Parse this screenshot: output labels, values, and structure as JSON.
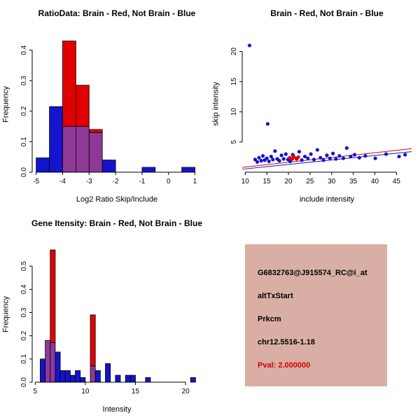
{
  "window": {
    "background": "#ffffff"
  },
  "colors": {
    "brain_red": "#e10000",
    "not_brain_blue": "#1414cc",
    "overlap_purple": "#8f3996",
    "axis_black": "#000000"
  },
  "panels": {
    "info_box": {
      "background": "#d9aea4",
      "lines": [
        {
          "text": "G6832763@J915574_RC@i_at",
          "color": "#000000"
        },
        {
          "text": "altTxStart",
          "color": "#000000"
        },
        {
          "text": "Prkcm",
          "color": "#000000"
        },
        {
          "text": "chr12.5516-1.18",
          "color": "#000000"
        },
        {
          "text": "Pval: 2.000000",
          "color": "#d40000"
        }
      ]
    }
  },
  "chart_data": [
    {
      "id": "ratio_hist",
      "type": "histogram",
      "title": "RatioData: Brain - Red, Not Brain - Blue",
      "xlabel": "Log2 Ratio Skip/Include",
      "ylabel": "Frequency",
      "xlim": [
        -5.15,
        1.25
      ],
      "ylim": [
        0,
        0.445
      ],
      "x_ticks": [
        -5,
        -4,
        -3,
        -2,
        -1,
        0,
        1
      ],
      "x_tick_labels": [
        "-5",
        "-4",
        "-3",
        "-2",
        "-1",
        "0",
        "1"
      ],
      "y_ticks": [
        0,
        0.1,
        0.2,
        0.3,
        0.4
      ],
      "y_tick_labels": [
        "0.0",
        "0.1",
        "0.2",
        "0.3",
        "0.4"
      ],
      "bin_width": 0.5,
      "colors": {
        "blue": "#1414cc",
        "red": "#e10000",
        "overlap": "#8f3996"
      },
      "blue_bins": [
        [
          -5,
          0.047
        ],
        [
          -4.5,
          0.215
        ],
        [
          -4,
          0.15
        ],
        [
          -3.5,
          0.15
        ],
        [
          -3,
          0.13
        ],
        [
          -2.5,
          0.04
        ],
        [
          -1,
          0.016
        ],
        [
          0.5,
          0.016
        ]
      ],
      "red_bins": [
        [
          -4,
          0.43
        ],
        [
          -3.5,
          0.285
        ],
        [
          -3,
          0.14
        ]
      ],
      "legend_note": "Brain - Red, Not Brain - Blue"
    },
    {
      "id": "scatter",
      "type": "scatter",
      "title": "Brain - Red, Not Brain - Blue",
      "xlabel": "include intensity",
      "ylabel": "skip intensity",
      "xlim": [
        9.3,
        48.5
      ],
      "ylim": [
        0,
        22.5
      ],
      "x_ticks": [
        10,
        15,
        20,
        25,
        30,
        35,
        40,
        45
      ],
      "x_tick_labels": [
        "10",
        "15",
        "20",
        "25",
        "30",
        "35",
        "40",
        "45"
      ],
      "y_ticks": [
        5,
        10,
        15,
        20
      ],
      "y_tick_labels": [
        "5",
        "10",
        "15",
        "20"
      ],
      "series": [
        {
          "name": "Not Brain",
          "color": "#1414cc",
          "points": [
            [
              11,
              21
            ],
            [
              15.2,
              8
            ],
            [
              12.3,
              2.1
            ],
            [
              12.8,
              1.7
            ],
            [
              13.2,
              2.4
            ],
            [
              13.7,
              1.9
            ],
            [
              14.1,
              2.7
            ],
            [
              14.5,
              2.0
            ],
            [
              15.0,
              2.3
            ],
            [
              15.5,
              1.8
            ],
            [
              16.0,
              2.6
            ],
            [
              16.4,
              2.1
            ],
            [
              16.9,
              3.5
            ],
            [
              17.4,
              2.2
            ],
            [
              17.9,
              1.9
            ],
            [
              18.4,
              2.8
            ],
            [
              18.9,
              2.2
            ],
            [
              19.4,
              3.0
            ],
            [
              19.9,
              2.1
            ],
            [
              20.4,
              1.8
            ],
            [
              21.0,
              2.9
            ],
            [
              21.9,
              2.2
            ],
            [
              22.5,
              3.4
            ],
            [
              23.1,
              2.0
            ],
            [
              23.8,
              2.6
            ],
            [
              24.5,
              2.3
            ],
            [
              25.2,
              3.0
            ],
            [
              25.9,
              2.1
            ],
            [
              26.7,
              3.7
            ],
            [
              27.4,
              2.4
            ],
            [
              28.1,
              2.0
            ],
            [
              28.9,
              2.8
            ],
            [
              29.6,
              2.3
            ],
            [
              30.3,
              3.1
            ],
            [
              31.0,
              2.2
            ],
            [
              31.8,
              2.7
            ],
            [
              32.7,
              2.3
            ],
            [
              33.5,
              4.0
            ],
            [
              34.4,
              2.6
            ],
            [
              35.3,
              2.9
            ],
            [
              36.4,
              2.4
            ],
            [
              37.8,
              2.7
            ],
            [
              40.1,
              2.3
            ],
            [
              42.6,
              3.0
            ],
            [
              45.6,
              2.6
            ],
            [
              47.0,
              2.9
            ]
          ]
        },
        {
          "name": "Brain",
          "color": "#e10000",
          "points": [
            [
              20.3,
              2.4
            ],
            [
              20.9,
              2.2
            ],
            [
              21.2,
              2.6
            ],
            [
              21.8,
              2.3
            ],
            [
              22.3,
              2.5
            ]
          ]
        }
      ],
      "lines": [
        {
          "name": "brain-fit",
          "color": "#e10000",
          "x1": 9.3,
          "y1": 0.8,
          "x2": 48.5,
          "y2": 3.9
        },
        {
          "name": "not-brain-fit",
          "color": "#1414cc",
          "x1": 9.3,
          "y1": 0.5,
          "x2": 48.5,
          "y2": 3.4
        }
      ]
    },
    {
      "id": "gene_hist",
      "type": "histogram",
      "title": "Gene Itensity: Brain - Red, Not Brain - Blue",
      "xlabel": "Intensity",
      "ylabel": "Frequency",
      "xlim": [
        4.7,
        21.6
      ],
      "ylim": [
        0,
        0.585
      ],
      "x_ticks": [
        5,
        10,
        15,
        20
      ],
      "x_tick_labels": [
        "5",
        "10",
        "15",
        "20"
      ],
      "y_ticks": [
        0,
        0.1,
        0.2,
        0.3,
        0.4,
        0.5
      ],
      "y_tick_labels": [
        "0.0",
        "0.1",
        "0.2",
        "0.3",
        "0.4",
        "0.5"
      ],
      "bin_width": 0.5,
      "colors": {
        "blue": "#1414cc",
        "red": "#e10000",
        "overlap": "#8f3996"
      },
      "blue_bins": [
        [
          5.5,
          0.1
        ],
        [
          6,
          0.18
        ],
        [
          6.5,
          0.17
        ],
        [
          7,
          0.13
        ],
        [
          7.5,
          0.05
        ],
        [
          8,
          0.05
        ],
        [
          8.5,
          0.03
        ],
        [
          9,
          0.05
        ],
        [
          9.5,
          0.02
        ],
        [
          10.5,
          0.07
        ],
        [
          11,
          0.05
        ],
        [
          12,
          0.08
        ],
        [
          13,
          0.03
        ],
        [
          14,
          0.03
        ],
        [
          14.5,
          0.03
        ],
        [
          16,
          0.02
        ],
        [
          20.5,
          0.02
        ]
      ],
      "red_bins": [
        [
          6,
          0.18
        ],
        [
          6.5,
          0.57
        ],
        [
          10.5,
          0.29
        ]
      ],
      "legend_note": "Brain - Red, Not Brain - Blue"
    }
  ]
}
